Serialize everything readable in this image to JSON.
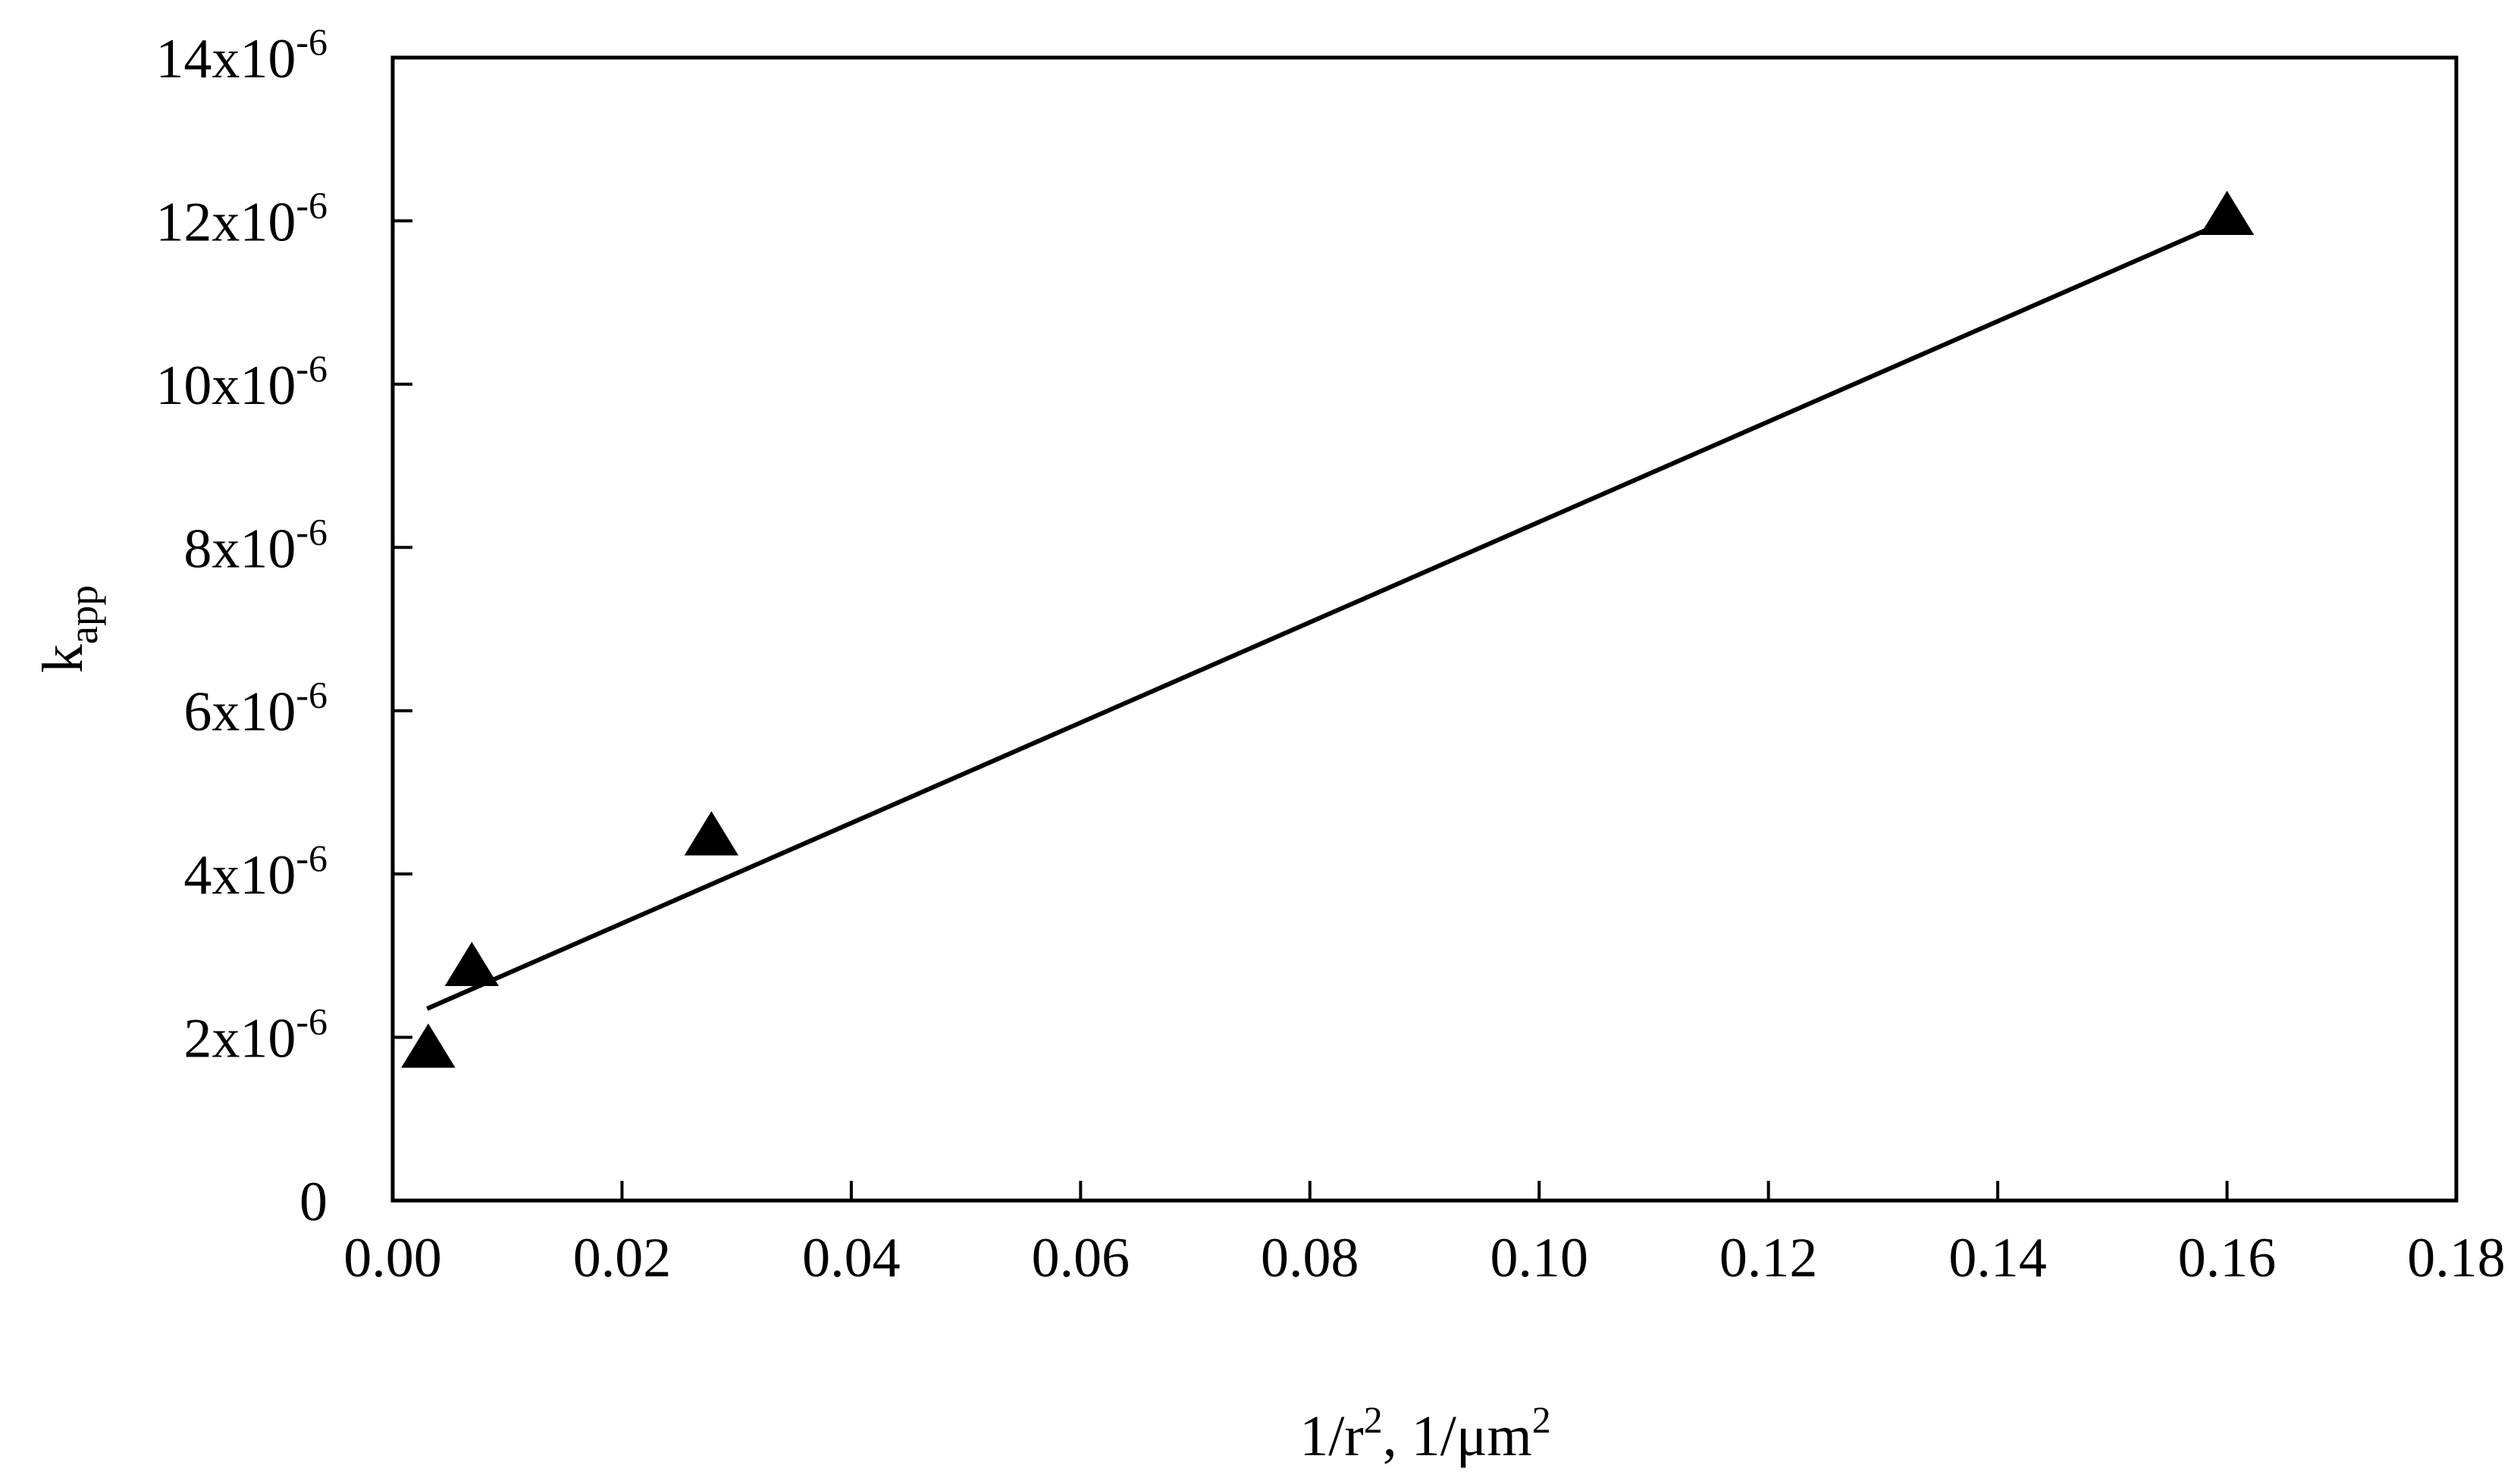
{
  "chart_data": {
    "type": "scatter",
    "xlabel": {
      "base": "1/r",
      "sup1": "2",
      "mid": ", 1/μm",
      "sup2": "2"
    },
    "ylabel": {
      "base": "k",
      "sub": "app"
    },
    "xlim": [
      0,
      0.18
    ],
    "ylim": [
      0,
      1.4e-05
    ],
    "grid": false,
    "x_ticks": [
      {
        "value": 0.0,
        "label": "0.00"
      },
      {
        "value": 0.02,
        "label": "0.02"
      },
      {
        "value": 0.04,
        "label": "0.04"
      },
      {
        "value": 0.06,
        "label": "0.06"
      },
      {
        "value": 0.08,
        "label": "0.08"
      },
      {
        "value": 0.1,
        "label": "0.10"
      },
      {
        "value": 0.12,
        "label": "0.12"
      },
      {
        "value": 0.14,
        "label": "0.14"
      },
      {
        "value": 0.16,
        "label": "0.16"
      },
      {
        "value": 0.18,
        "label": "0.18"
      }
    ],
    "y_ticks": [
      {
        "value": 0,
        "base": "0",
        "exp": ""
      },
      {
        "value": 2e-06,
        "base": "2x10",
        "exp": "-6"
      },
      {
        "value": 4e-06,
        "base": "4x10",
        "exp": "-6"
      },
      {
        "value": 6e-06,
        "base": "6x10",
        "exp": "-6"
      },
      {
        "value": 8e-06,
        "base": "8x10",
        "exp": "-6"
      },
      {
        "value": 1e-05,
        "base": "10x10",
        "exp": "-6"
      },
      {
        "value": 1.2e-05,
        "base": "12x10",
        "exp": "-6"
      },
      {
        "value": 1.4e-05,
        "base": "14x10",
        "exp": "-6"
      }
    ],
    "series": [
      {
        "marker": "triangle",
        "color": "#000000",
        "points": [
          {
            "x": 0.0031,
            "y": 1.85e-06
          },
          {
            "x": 0.0069,
            "y": 2.85e-06
          },
          {
            "x": 0.0278,
            "y": 4.45e-06
          },
          {
            "x": 0.16,
            "y": 1.205e-05
          }
        ]
      }
    ],
    "fit_line": {
      "x": [
        0.003,
        0.16
      ],
      "y": [
        2.35e-06,
        1.2e-05
      ],
      "color": "#000000"
    }
  }
}
